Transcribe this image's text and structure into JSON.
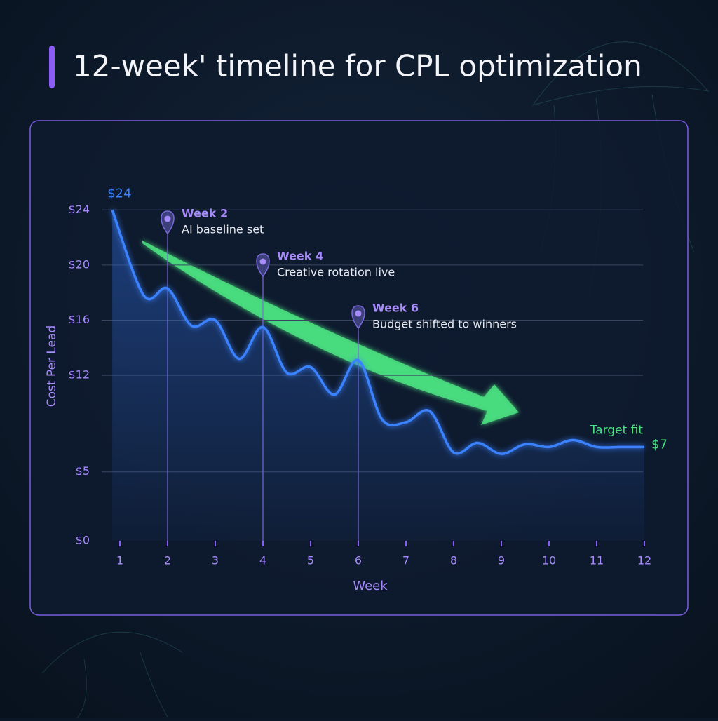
{
  "chart_data": {
    "type": "line",
    "title": "12-week' timeline for CPL optimization",
    "x_label": "Week",
    "y_label": "Cost Per Lead",
    "x": [
      0.84,
      1.5,
      2,
      2.5,
      3,
      3.5,
      4,
      4.5,
      5,
      5.5,
      6,
      6.5,
      7,
      7.5,
      8,
      8.5,
      9,
      9.5,
      10,
      10.5,
      11,
      11.5,
      12
    ],
    "series": [
      {
        "color": "#3b82ff",
        "values": [
          24,
          17.8,
          18.3,
          15.6,
          16,
          13.2,
          15.5,
          12.2,
          12.6,
          10.6,
          13.1,
          8.8,
          8.6,
          9.4,
          6.4,
          7.1,
          6.3,
          7,
          6.8,
          7.3,
          6.8,
          6.8,
          6.8
        ],
        "value_labels": [
          "$24",
          null,
          null,
          null,
          null,
          null,
          null,
          null,
          null,
          null,
          null,
          null,
          null,
          null,
          null,
          null,
          null,
          null,
          null,
          null,
          null,
          null,
          null
        ]
      }
    ],
    "xlim": [
      0.6,
      12
    ],
    "xticks": [
      1,
      2,
      3,
      4,
      5,
      6,
      7,
      8,
      9,
      10,
      11,
      12
    ],
    "ylim": [
      0,
      26
    ],
    "yticks": [
      {
        "value": 0,
        "label": "$0"
      },
      {
        "value": 5,
        "label": "$5"
      },
      {
        "value": 12,
        "label": "$12"
      },
      {
        "value": 16,
        "label": "$16"
      },
      {
        "value": 20,
        "label": "$20"
      },
      {
        "value": 24,
        "label": "$24"
      }
    ],
    "grid": true,
    "milestones": [
      {
        "x": 2,
        "title": "Week 2",
        "text": "AI baseline set"
      },
      {
        "x": 4,
        "title": "Week 4",
        "text": "Creative rotation live"
      },
      {
        "x": 6,
        "title": "Week 6",
        "text": "Budget shifted to winners"
      }
    ],
    "target": {
      "name": "Target fit",
      "value": 7,
      "value_label": "$7",
      "x_start": 8,
      "x_end": 12,
      "color": "#4ade80"
    }
  }
}
